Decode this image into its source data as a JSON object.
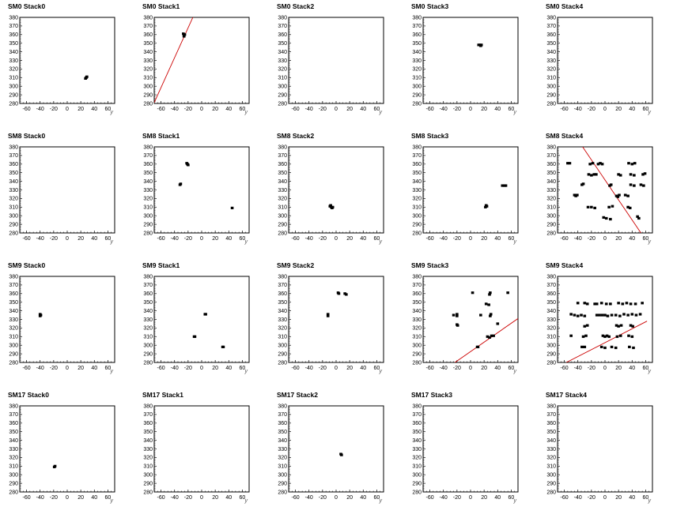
{
  "chart_data": {
    "type": "scatter",
    "grid": false,
    "xlim": [
      -70,
      70
    ],
    "ylim": [
      280,
      380
    ],
    "xticks": [
      -60,
      -40,
      -20,
      0,
      20,
      40,
      60
    ],
    "yticks": [
      280,
      290,
      300,
      310,
      320,
      330,
      340,
      350,
      360,
      370,
      380
    ],
    "xlabel": "y",
    "ylabel": "",
    "colors": {
      "points": "#000000",
      "fit_line": "#cc0000",
      "axis": "#000000"
    },
    "panels": [
      {
        "title": "SM0 Stack0",
        "points": [
          [
            28,
            310
          ],
          [
            29,
            311
          ],
          [
            27,
            309
          ]
        ],
        "line": null
      },
      {
        "title": "SM0 Stack1",
        "points": [
          [
            -26,
            359
          ],
          [
            -27,
            361
          ],
          [
            -25,
            360
          ],
          [
            -26,
            358
          ]
        ],
        "line": [
          [
            -70,
            281
          ],
          [
            -13,
            380
          ]
        ]
      },
      {
        "title": "SM0 Stack2",
        "points": [],
        "line": null
      },
      {
        "title": "SM0 Stack3",
        "points": [
          [
            12,
            348
          ],
          [
            14,
            348
          ],
          [
            16,
            348
          ],
          [
            15,
            347
          ]
        ],
        "line": null
      },
      {
        "title": "SM0 Stack4",
        "points": [],
        "line": null
      },
      {
        "title": "SM8 Stack0",
        "points": [],
        "line": null
      },
      {
        "title": "SM8 Stack1",
        "points": [
          [
            -22,
            361
          ],
          [
            -20,
            359
          ],
          [
            -21,
            360
          ],
          [
            -32,
            336
          ],
          [
            -31,
            337
          ],
          [
            45,
            309
          ]
        ],
        "line": null
      },
      {
        "title": "SM8 Stack2",
        "points": [
          [
            -8,
            312
          ],
          [
            -7,
            310
          ],
          [
            -6,
            309
          ],
          [
            -5,
            310
          ],
          [
            -9,
            311
          ]
        ],
        "line": null
      },
      {
        "title": "SM8 Stack3",
        "points": [
          [
            22,
            310
          ],
          [
            23,
            312
          ],
          [
            24,
            311
          ],
          [
            47,
            335
          ],
          [
            50,
            335
          ],
          [
            52,
            335
          ]
        ],
        "line": null
      },
      {
        "title": "SM8 Stack4",
        "points": [
          [
            -55,
            361
          ],
          [
            -52,
            361
          ],
          [
            -22,
            360
          ],
          [
            -18,
            361
          ],
          [
            -10,
            360
          ],
          [
            -7,
            361
          ],
          [
            -4,
            360
          ],
          [
            35,
            361
          ],
          [
            40,
            360
          ],
          [
            44,
            361
          ],
          [
            -24,
            348
          ],
          [
            -20,
            347
          ],
          [
            -16,
            348
          ],
          [
            -13,
            348
          ],
          [
            20,
            348
          ],
          [
            23,
            347
          ],
          [
            38,
            348
          ],
          [
            43,
            347
          ],
          [
            56,
            348
          ],
          [
            59,
            349
          ],
          [
            -34,
            336
          ],
          [
            -32,
            337
          ],
          [
            7,
            335
          ],
          [
            9,
            336
          ],
          [
            38,
            336
          ],
          [
            43,
            335
          ],
          [
            53,
            336
          ],
          [
            57,
            335
          ],
          [
            -45,
            324
          ],
          [
            -43,
            323
          ],
          [
            -41,
            324
          ],
          [
            17,
            323
          ],
          [
            19,
            322
          ],
          [
            21,
            324
          ],
          [
            30,
            324
          ],
          [
            34,
            323
          ],
          [
            -25,
            310
          ],
          [
            -20,
            310
          ],
          [
            -15,
            309
          ],
          [
            6,
            310
          ],
          [
            11,
            311
          ],
          [
            34,
            310
          ],
          [
            37,
            309
          ],
          [
            -2,
            298
          ],
          [
            2,
            297
          ],
          [
            8,
            296
          ],
          [
            48,
            299
          ],
          [
            50,
            297
          ]
        ],
        "line": [
          [
            -33,
            380
          ],
          [
            53,
            280
          ]
        ]
      },
      {
        "title": "SM9 Stack0",
        "points": [
          [
            -40,
            336
          ],
          [
            -39,
            335
          ],
          [
            -40,
            334
          ]
        ],
        "line": null
      },
      {
        "title": "SM9 Stack1",
        "points": [
          [
            5,
            336
          ],
          [
            6,
            336
          ],
          [
            -11,
            310
          ],
          [
            -10,
            310
          ],
          [
            31,
            298
          ],
          [
            32,
            298
          ]
        ],
        "line": null
      },
      {
        "title": "SM9 Stack2",
        "points": [
          [
            -12,
            336
          ],
          [
            -12,
            334
          ],
          [
            3,
            361
          ],
          [
            4,
            360
          ],
          [
            13,
            360
          ],
          [
            15,
            359
          ]
        ],
        "line": null
      },
      {
        "title": "SM9 Stack3",
        "points": [
          [
            3,
            361
          ],
          [
            55,
            361
          ],
          [
            -25,
            335
          ],
          [
            -20,
            336
          ],
          [
            -20,
            334
          ],
          [
            15,
            335
          ],
          [
            30,
            336
          ],
          [
            29,
            334
          ],
          [
            -20,
            324
          ],
          [
            -19,
            323
          ],
          [
            40,
            325
          ],
          [
            23,
            348
          ],
          [
            27,
            347
          ],
          [
            28,
            359
          ],
          [
            29,
            361
          ],
          [
            25,
            310
          ],
          [
            28,
            309
          ],
          [
            31,
            311
          ],
          [
            34,
            311
          ],
          [
            10,
            298
          ],
          [
            11,
            298
          ]
        ],
        "line": [
          [
            -23,
            280
          ],
          [
            70,
            331
          ]
        ]
      },
      {
        "title": "SM9 Stack4",
        "points": [
          [
            -40,
            349
          ],
          [
            -30,
            349
          ],
          [
            -26,
            348
          ],
          [
            -15,
            348
          ],
          [
            -12,
            348
          ],
          [
            -5,
            349
          ],
          [
            2,
            348
          ],
          [
            8,
            348
          ],
          [
            20,
            349
          ],
          [
            26,
            348
          ],
          [
            32,
            349
          ],
          [
            38,
            348
          ],
          [
            45,
            348
          ],
          [
            55,
            349
          ],
          [
            -50,
            336
          ],
          [
            -45,
            335
          ],
          [
            -40,
            334
          ],
          [
            -35,
            335
          ],
          [
            -30,
            334
          ],
          [
            -12,
            335
          ],
          [
            -8,
            335
          ],
          [
            -4,
            335
          ],
          [
            0,
            335
          ],
          [
            4,
            334
          ],
          [
            10,
            335
          ],
          [
            16,
            335
          ],
          [
            22,
            334
          ],
          [
            28,
            336
          ],
          [
            34,
            335
          ],
          [
            40,
            336
          ],
          [
            46,
            335
          ],
          [
            52,
            336
          ],
          [
            -30,
            322
          ],
          [
            -26,
            323
          ],
          [
            17,
            323
          ],
          [
            20,
            322
          ],
          [
            24,
            323
          ],
          [
            38,
            323
          ],
          [
            41,
            322
          ],
          [
            -50,
            311
          ],
          [
            -32,
            310
          ],
          [
            -28,
            311
          ],
          [
            -3,
            311
          ],
          [
            0,
            310
          ],
          [
            3,
            311
          ],
          [
            6,
            310
          ],
          [
            18,
            310
          ],
          [
            23,
            311
          ],
          [
            35,
            311
          ],
          [
            40,
            310
          ],
          [
            -34,
            298
          ],
          [
            -30,
            298
          ],
          [
            -5,
            298
          ],
          [
            0,
            297
          ],
          [
            10,
            298
          ],
          [
            16,
            297
          ],
          [
            36,
            298
          ],
          [
            42,
            297
          ]
        ],
        "line": [
          [
            -57,
            280
          ],
          [
            62,
            328
          ]
        ]
      },
      {
        "title": "SM17 Stack0",
        "points": [
          [
            -19,
            309
          ],
          [
            -18,
            310
          ]
        ],
        "line": null
      },
      {
        "title": "SM17 Stack1",
        "points": [],
        "line": null
      },
      {
        "title": "SM17 Stack2",
        "points": [
          [
            7,
            324
          ],
          [
            8,
            323
          ]
        ],
        "line": null
      },
      {
        "title": "SM17 Stack3",
        "points": [],
        "line": null
      },
      {
        "title": "SM17 Stack4",
        "points": [],
        "line": null
      }
    ]
  }
}
